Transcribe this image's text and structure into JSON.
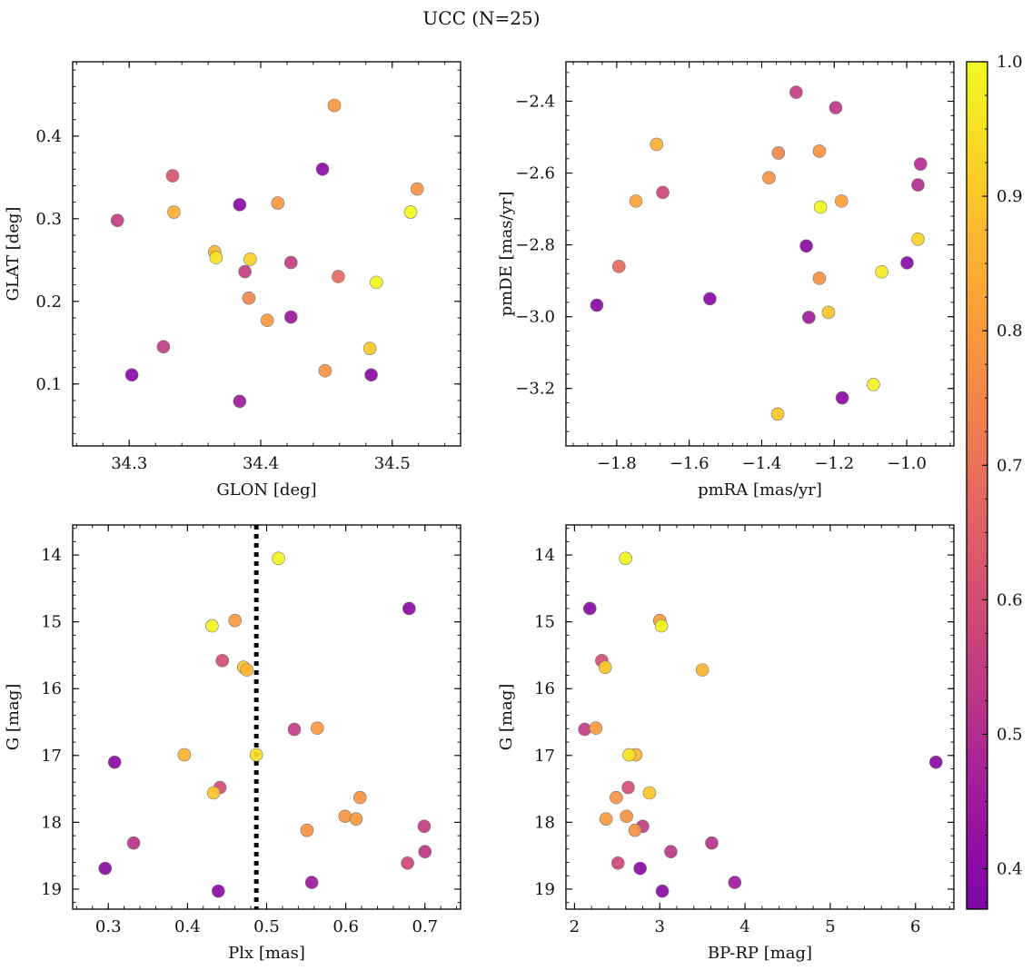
{
  "figure": {
    "title": "UCC (N=25)"
  },
  "colorbar": {
    "vmin": 0.37,
    "vmax": 1.0,
    "ticks": [
      0.4,
      0.5,
      0.6,
      0.7,
      0.8,
      0.9,
      1.0
    ],
    "tick_labels": [
      "0.4",
      "0.5",
      "0.6",
      "0.7",
      "0.8",
      "0.9",
      "1.0"
    ],
    "colormap": "plasma"
  },
  "chart_data": [
    {
      "type": "scatter",
      "id": "glon-glat",
      "xlabel": "GLON [deg]",
      "ylabel": "GLAT [deg]",
      "xlim": [
        34.257,
        34.552
      ],
      "ylim": [
        0.025,
        0.49
      ],
      "y_inverted": false,
      "xticks": [
        34.3,
        34.4,
        34.5
      ],
      "xtick_labels": [
        "34.3",
        "34.4",
        "34.5"
      ],
      "yticks": [
        0.1,
        0.2,
        0.3,
        0.4
      ],
      "ytick_labels": [
        "0.1",
        "0.2",
        "0.3",
        "0.4"
      ],
      "x": [
        34.456,
        34.519,
        34.514,
        34.447,
        34.333,
        34.291,
        34.334,
        34.384,
        34.413,
        34.365,
        34.366,
        34.392,
        34.423,
        34.388,
        34.459,
        34.488,
        34.391,
        34.405,
        34.423,
        34.326,
        34.483,
        34.302,
        34.449,
        34.484,
        34.384
      ],
      "y": [
        0.437,
        0.336,
        0.308,
        0.36,
        0.352,
        0.298,
        0.308,
        0.317,
        0.319,
        0.26,
        0.253,
        0.251,
        0.247,
        0.236,
        0.23,
        0.223,
        0.204,
        0.177,
        0.181,
        0.145,
        0.143,
        0.111,
        0.116,
        0.111,
        0.079
      ],
      "c": [
        0.8,
        0.78,
        1.0,
        0.4,
        0.62,
        0.55,
        0.85,
        0.4,
        0.8,
        0.86,
        0.96,
        0.92,
        0.55,
        0.55,
        0.68,
        0.99,
        0.75,
        0.8,
        0.44,
        0.55,
        0.9,
        0.4,
        0.78,
        0.4,
        0.45
      ]
    },
    {
      "type": "scatter",
      "id": "pmra-pmde",
      "xlabel": "pmRA [mas/yr]",
      "ylabel": "pmDE [mas/yr]",
      "xlim": [
        -1.94,
        -0.87
      ],
      "ylim": [
        -3.36,
        -2.29
      ],
      "y_inverted": false,
      "xticks": [
        -1.8,
        -1.6,
        -1.4,
        -1.2,
        -1.0
      ],
      "xtick_labels": [
        "−1.8",
        "−1.6",
        "−1.4",
        "−1.2",
        "−1.0"
      ],
      "yticks": [
        -3.2,
        -3.0,
        -2.8,
        -2.6,
        -2.4
      ],
      "ytick_labels": [
        "−3.2",
        "−3.0",
        "−2.8",
        "−2.6",
        "−2.4"
      ],
      "x": [
        -1.305,
        -1.196,
        -1.69,
        -1.354,
        -1.241,
        -0.962,
        -1.38,
        -0.969,
        -1.747,
        -1.673,
        -1.18,
        -1.238,
        -1.277,
        -0.969,
        -1.069,
        -1.794,
        -0.999,
        -1.241,
        -1.855,
        -1.543,
        -1.27,
        -1.216,
        -1.092,
        -1.178,
        -1.356
      ],
      "y": [
        -2.375,
        -2.418,
        -2.52,
        -2.544,
        -2.539,
        -2.575,
        -2.613,
        -2.633,
        -2.678,
        -2.654,
        -2.678,
        -2.695,
        -2.803,
        -2.784,
        -2.875,
        -2.86,
        -2.85,
        -2.893,
        -2.968,
        -2.95,
        -3.002,
        -2.988,
        -3.189,
        -3.226,
        -3.271
      ],
      "c": [
        0.55,
        0.53,
        0.85,
        0.75,
        0.78,
        0.5,
        0.78,
        0.5,
        0.82,
        0.58,
        0.82,
        0.99,
        0.4,
        0.92,
        0.97,
        0.68,
        0.4,
        0.78,
        0.4,
        0.4,
        0.45,
        0.9,
        0.98,
        0.4,
        0.9
      ]
    },
    {
      "type": "scatter",
      "id": "plx-g",
      "xlabel": "Plx [mas]",
      "ylabel": "G [mag]",
      "xlim": [
        0.255,
        0.745
      ],
      "ylim": [
        19.3,
        13.55
      ],
      "y_inverted": true,
      "vline": {
        "x": 0.487,
        "style": "dotted"
      },
      "xticks": [
        0.3,
        0.4,
        0.5,
        0.6,
        0.7
      ],
      "xtick_labels": [
        "0.3",
        "0.4",
        "0.5",
        "0.6",
        "0.7"
      ],
      "yticks": [
        14,
        15,
        16,
        17,
        18,
        19
      ],
      "ytick_labels": [
        "14",
        "15",
        "16",
        "17",
        "18",
        "19"
      ],
      "x": [
        0.515,
        0.68,
        0.46,
        0.431,
        0.444,
        0.471,
        0.475,
        0.535,
        0.564,
        0.308,
        0.396,
        0.487,
        0.441,
        0.433,
        0.618,
        0.699,
        0.599,
        0.613,
        0.551,
        0.332,
        0.7,
        0.678,
        0.296,
        0.557,
        0.439
      ],
      "y": [
        14.05,
        14.8,
        14.98,
        15.06,
        15.58,
        15.68,
        15.72,
        16.61,
        16.59,
        17.1,
        16.99,
        16.99,
        17.48,
        17.56,
        17.63,
        18.06,
        17.91,
        17.95,
        18.12,
        18.31,
        18.44,
        18.61,
        18.69,
        18.9,
        19.03
      ],
      "c": [
        0.99,
        0.4,
        0.8,
        0.99,
        0.6,
        0.9,
        0.86,
        0.55,
        0.8,
        0.4,
        0.86,
        0.95,
        0.6,
        0.9,
        0.78,
        0.55,
        0.78,
        0.8,
        0.78,
        0.52,
        0.53,
        0.58,
        0.4,
        0.45,
        0.4
      ]
    },
    {
      "type": "scatter",
      "id": "bprp-g",
      "xlabel": "BP-RP [mag]",
      "ylabel": "G [mag]",
      "xlim": [
        1.9,
        6.45
      ],
      "ylim": [
        19.3,
        13.55
      ],
      "y_inverted": true,
      "xticks": [
        2,
        3,
        4,
        5,
        6
      ],
      "xtick_labels": [
        "2",
        "3",
        "4",
        "5",
        "6"
      ],
      "yticks": [
        14,
        15,
        16,
        17,
        18,
        19
      ],
      "ytick_labels": [
        "14",
        "15",
        "16",
        "17",
        "18",
        "19"
      ],
      "x": [
        2.6,
        2.18,
        3.0,
        3.02,
        2.32,
        2.36,
        3.5,
        2.12,
        2.25,
        6.24,
        2.72,
        2.64,
        2.63,
        2.88,
        2.49,
        2.8,
        2.61,
        2.37,
        2.71,
        3.61,
        3.13,
        2.51,
        2.77,
        3.88,
        3.03
      ],
      "y": [
        14.05,
        14.8,
        14.98,
        15.06,
        15.58,
        15.68,
        15.72,
        16.61,
        16.59,
        17.1,
        16.99,
        16.99,
        17.48,
        17.56,
        17.63,
        18.06,
        17.91,
        17.95,
        18.12,
        18.31,
        18.44,
        18.61,
        18.69,
        18.9,
        19.03
      ],
      "c": [
        0.99,
        0.4,
        0.8,
        0.99,
        0.6,
        0.9,
        0.86,
        0.55,
        0.8,
        0.4,
        0.86,
        0.95,
        0.6,
        0.9,
        0.78,
        0.55,
        0.78,
        0.8,
        0.78,
        0.52,
        0.53,
        0.58,
        0.4,
        0.45,
        0.4
      ]
    }
  ]
}
